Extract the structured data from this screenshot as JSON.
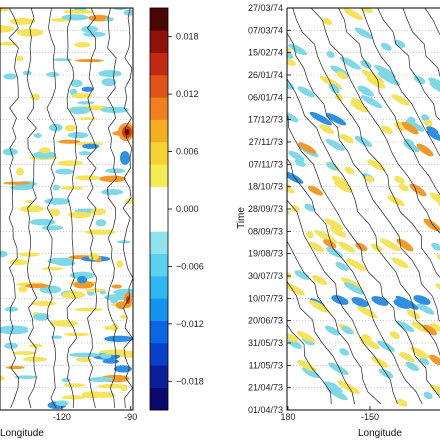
{
  "chart_data": [
    {
      "type": "heatmap",
      "title": "",
      "xlabel": "Longitude",
      "ylabel": "",
      "x_ticks": [
        {
          "value": -120,
          "label": "-120"
        },
        {
          "value": -90,
          "label": "-90"
        }
      ],
      "xlim": [
        -147,
        -89
      ],
      "y_ticks": [],
      "contours": true,
      "grid": "horizontal dotted"
    },
    {
      "type": "heatmap",
      "title": "",
      "xlabel": "Longitude",
      "ylabel": "Time",
      "x_ticks": [
        {
          "value": 180,
          "label": "180"
        },
        {
          "value": -150,
          "label": "-150"
        }
      ],
      "y_ticks": [
        "01/04/73",
        "21/04/73",
        "11/05/73",
        "31/05/73",
        "20/06/73",
        "10/07/73",
        "30/07/73",
        "19/08/73",
        "08/09/73",
        "28/09/73",
        "18/10/73",
        "07/11/73",
        "27/11/73",
        "17/12/73",
        "06/01/74",
        "26/01/74",
        "15/02/74",
        "07/03/74",
        "27/03/74"
      ],
      "ylim": [
        "01/04/73",
        "27/03/74"
      ],
      "contours": true,
      "grid": "horizontal dotted"
    }
  ],
  "colorbar": {
    "range": [
      -0.021,
      0.021
    ],
    "ticks": [
      {
        "value": 0.018,
        "label": "0.018"
      },
      {
        "value": 0.012,
        "label": "0.012"
      },
      {
        "value": 0.006,
        "label": "0.006"
      },
      {
        "value": 0.0,
        "label": "0.000"
      },
      {
        "value": -0.006,
        "label": "−0.006"
      },
      {
        "value": -0.012,
        "label": "−0.012"
      },
      {
        "value": -0.018,
        "label": "−0.018"
      }
    ],
    "colors": [
      "#0a0a6e",
      "#0a1f9a",
      "#0a3fcc",
      "#0b66e6",
      "#1493f0",
      "#2fb8f0",
      "#58d2ee",
      "#8fe2ee",
      "#ffffff",
      "#ffffff",
      "#f4ec55",
      "#f6d330",
      "#f5ae1f",
      "#ef8020",
      "#e05418",
      "#c42a12",
      "#8e1208",
      "#4a0804"
    ]
  },
  "colors": {
    "yellow": "#f5e35a",
    "cyan": "#7fd8e8",
    "blue": "#2f8fe0",
    "orange": "#f09a2a",
    "red": "#d23a14",
    "contour": "#222222"
  }
}
